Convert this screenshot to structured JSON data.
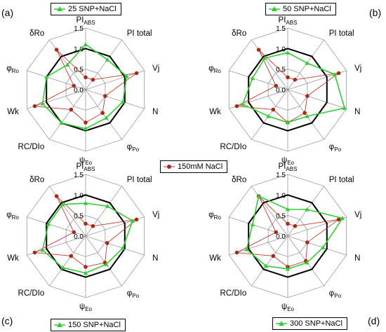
{
  "figure": {
    "colors": {
      "control": "#c0392b",
      "control_marker": "#a52a1a",
      "treatment": "#33cc33",
      "reference": "#000000",
      "grid": "#999999"
    },
    "legend_control": "150mM NaCl"
  },
  "chart_data": [
    {
      "type": "radar",
      "panel_letter": "(a)",
      "legend": "25 SNP+NaCl",
      "axes": [
        "PIABS",
        "PI total",
        "Vj",
        "N",
        "φPo",
        "ψEo",
        "RC/DIo",
        "Wk",
        "φRo",
        "δRo"
      ],
      "axis_labels": [
        {
          "main": "PI",
          "sub": "ABS"
        },
        {
          "main": "PI total",
          "sub": ""
        },
        {
          "main": "Vj",
          "sub": ""
        },
        {
          "main": "N",
          "sub": ""
        },
        {
          "main": "φ",
          "sub": "Po"
        },
        {
          "main": "ψ",
          "sub": "Eo"
        },
        {
          "main": "RC/DIo",
          "sub": ""
        },
        {
          "main": "Wk",
          "sub": ""
        },
        {
          "main": "φ",
          "sub": "Ro"
        },
        {
          "main": "δRo",
          "sub": ""
        }
      ],
      "ticks": [
        "0.0",
        "0.5",
        "1.0",
        "1.5"
      ],
      "rmax": 1.5,
      "reference": 1.0,
      "control": [
        0.3,
        0.3,
        1.3,
        0.5,
        0.7,
        0.8,
        0.6,
        1.3,
        0.3,
        1.2
      ],
      "treatment": [
        1.1,
        0.9,
        1.05,
        0.95,
        0.85,
        0.95,
        1.0,
        1.1,
        1.0,
        0.75
      ]
    },
    {
      "type": "radar",
      "panel_letter": "(b)",
      "legend": "50 SNP+NaCl",
      "axes": [
        "PIABS",
        "PI total",
        "Vj",
        "N",
        "φPo",
        "ψEo",
        "RC/DIo",
        "Wk",
        "φRo",
        "δRo"
      ],
      "axis_labels": [
        {
          "main": "PI",
          "sub": "ABS"
        },
        {
          "main": "PI total",
          "sub": ""
        },
        {
          "main": "Vj",
          "sub": ""
        },
        {
          "main": "N",
          "sub": ""
        },
        {
          "main": "φ",
          "sub": "Po"
        },
        {
          "main": "ψ",
          "sub": "Eo"
        },
        {
          "main": "RC/DIo",
          "sub": ""
        },
        {
          "main": "Wk",
          "sub": ""
        },
        {
          "main": "φ",
          "sub": "Ro"
        },
        {
          "main": "δRo",
          "sub": ""
        }
      ],
      "ticks": [
        "0.0",
        "0.5",
        "1.0",
        "1.5"
      ],
      "rmax": 1.5,
      "reference": 1.0,
      "control": [
        0.3,
        0.3,
        1.3,
        0.5,
        0.7,
        0.8,
        0.6,
        1.3,
        0.3,
        1.2
      ],
      "treatment": [
        0.9,
        0.8,
        1.2,
        1.45,
        0.8,
        0.8,
        0.8,
        1.15,
        0.9,
        0.95
      ]
    },
    {
      "type": "radar",
      "panel_letter": "(c)",
      "legend": "150 SNP+NaCl",
      "axes": [
        "PIABS",
        "PI total",
        "Vj",
        "N",
        "φPo",
        "ψEo",
        "RC/DIo",
        "Wk",
        "φRo",
        "δRo"
      ],
      "axis_labels": [
        {
          "main": "PI",
          "sub": "ABS"
        },
        {
          "main": "PI total",
          "sub": ""
        },
        {
          "main": "Vj",
          "sub": ""
        },
        {
          "main": "N",
          "sub": ""
        },
        {
          "main": "φ",
          "sub": "Po"
        },
        {
          "main": "ψ",
          "sub": "Eo"
        },
        {
          "main": "RC/DIo",
          "sub": ""
        },
        {
          "main": "Wk",
          "sub": ""
        },
        {
          "main": "φ",
          "sub": "Ro"
        },
        {
          "main": "δRo",
          "sub": ""
        }
      ],
      "ticks": [
        "0.0",
        "0.5",
        "1.0",
        "1.5"
      ],
      "rmax": 1.5,
      "reference": 1.0,
      "control": [
        0.3,
        0.3,
        1.3,
        0.55,
        0.8,
        0.75,
        0.6,
        1.3,
        0.3,
        1.2
      ],
      "treatment": [
        0.8,
        0.9,
        1.2,
        0.95,
        0.85,
        0.9,
        0.95,
        1.1,
        0.95,
        0.95
      ]
    },
    {
      "type": "radar",
      "panel_letter": "(d)",
      "legend": "300 SNP+NaCl",
      "axes": [
        "PIABS",
        "PI total",
        "Vj",
        "N",
        "φPo",
        "ψEo",
        "RC/DIo",
        "Wk",
        "φRo",
        "δRo"
      ],
      "axis_labels": [
        {
          "main": "PI",
          "sub": "ABS"
        },
        {
          "main": "PI total",
          "sub": ""
        },
        {
          "main": "Vj",
          "sub": ""
        },
        {
          "main": "N",
          "sub": ""
        },
        {
          "main": "φ",
          "sub": "Po"
        },
        {
          "main": "ψ",
          "sub": "Eo"
        },
        {
          "main": "RC/DIo",
          "sub": ""
        },
        {
          "main": "Wk",
          "sub": ""
        },
        {
          "main": "φ",
          "sub": "Ro"
        },
        {
          "main": "δRo",
          "sub": ""
        }
      ],
      "ticks": [
        "0.0",
        "0.5",
        "1.0",
        "1.5"
      ],
      "rmax": 1.5,
      "reference": 1.0,
      "control": [
        0.3,
        0.3,
        1.3,
        0.5,
        0.75,
        0.75,
        0.6,
        1.3,
        0.3,
        1.2
      ],
      "treatment": [
        0.65,
        0.8,
        1.4,
        0.9,
        0.8,
        0.8,
        0.9,
        1.05,
        0.9,
        1.2
      ]
    }
  ]
}
